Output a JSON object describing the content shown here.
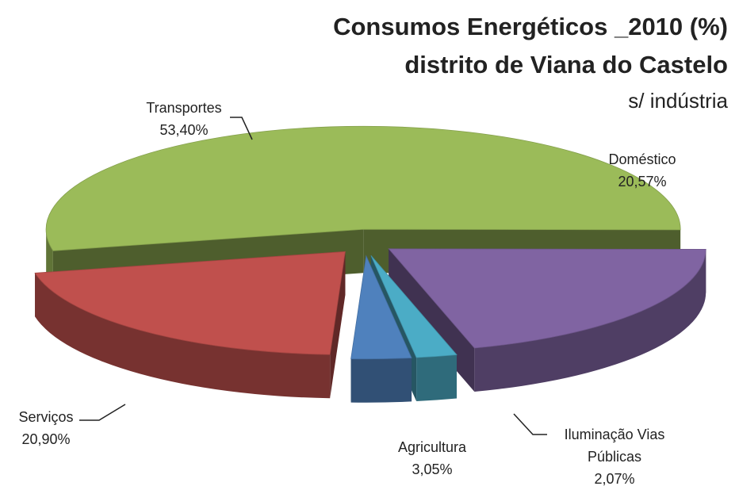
{
  "chart_data": {
    "type": "pie3d",
    "title": [
      "Consumos Energéticos _2010 (%)",
      "distrito de Viana do Castelo"
    ],
    "subtitle": "s/ indústria",
    "categories": [
      "Transportes",
      "Doméstico",
      "Iluminação Vias Públicas",
      "Agricultura",
      "Serviços"
    ],
    "values": [
      53.4,
      20.57,
      2.07,
      3.05,
      20.9
    ],
    "value_labels": [
      "53,40%",
      "20,57%",
      "2,07%",
      "3,05%",
      "20,90%"
    ],
    "colors": [
      "#9bbb59",
      "#8064a2",
      "#4bacc6",
      "#4f81bd",
      "#c0504d"
    ]
  }
}
